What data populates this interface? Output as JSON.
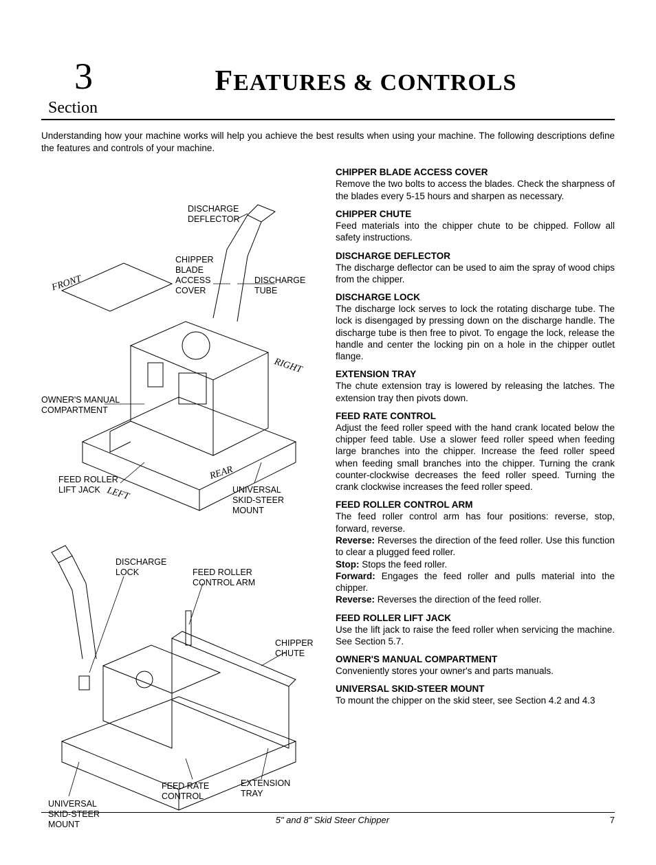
{
  "header": {
    "section_number": "3",
    "section_word": "Section",
    "title_pre": "F",
    "title_rest": "EATURES & CONTROLS"
  },
  "intro": "Understanding how your machine works will help you achieve the best results when using your machine.  The following descriptions define the features and controls of your machine.",
  "diagram1": {
    "labels": {
      "discharge_deflector": "DISCHARGE\nDEFLECTOR",
      "chipper_blade_access_cover": "CHIPPER\nBLADE\nACCESS\nCOVER",
      "discharge_tube": "DISCHARGE\nTUBE",
      "owners_manual_compartment": "OWNER'S MANUAL\nCOMPARTMENT",
      "feed_roller_lift_jack": "FEED ROLLER\nLIFT JACK",
      "universal_skid_steer_mount": "UNIVERSAL\nSKID-STEER\nMOUNT",
      "front": "FRONT",
      "right": "RIGHT",
      "rear": "REAR",
      "left": "LEFT"
    }
  },
  "diagram2": {
    "labels": {
      "discharge_lock": "DISCHARGE\nLOCK",
      "feed_roller_control_arm": "FEED ROLLER\nCONTROL ARM",
      "chipper_chute": "CHIPPER\nCHUTE",
      "feed_rate_control": "FEED RATE\nCONTROL",
      "extension_tray": "EXTENSION\nTRAY",
      "universal_skid_steer_mount": "UNIVERSAL\nSKID-STEER\nMOUNT"
    }
  },
  "features": [
    {
      "heading": "CHIPPER BLADE ACCESS COVER",
      "body": "Remove the two bolts to access the blades. Check the sharpness of the blades every 5-15 hours and sharpen as necessary."
    },
    {
      "heading": "CHIPPER CHUTE",
      "body": "Feed materials into the chipper chute to be chipped. Follow all safety instructions."
    },
    {
      "heading": "DISCHARGE DEFLECTOR",
      "body": "The discharge deflector can be used to aim the spray of wood chips from the chipper."
    },
    {
      "heading": "DISCHARGE LOCK",
      "body": "The discharge lock serves to lock the rotating discharge tube.  The lock is disengaged by pressing down on the discharge handle.  The discharge tube is then free to pivot.  To engage the lock, release the handle and center the locking pin on a hole in the chipper outlet flange."
    },
    {
      "heading": "EXTENSION TRAY",
      "body": "The chute extension tray is lowered by releasing the latches.  The extension tray then pivots down."
    },
    {
      "heading": "FEED RATE CONTROL",
      "body": "Adjust the feed roller speed with the hand crank located below the chipper feed table.  Use a slower feed roller speed when feeding large branches into the chipper.  Increase the feed roller speed when feeding small branches into the chipper.  Turning the crank counter-clockwise decreases the feed roller speed.  Turning the crank clockwise increases the feed roller speed."
    },
    {
      "heading": "FEED ROLLER CONTROL ARM",
      "body": "The feed roller control arm has four positions: reverse, stop, forward, reverse."
    },
    {
      "heading": "",
      "body": "<b>Reverse:</b> Reverses the direction of the feed roller. Use this function to clear a plugged feed roller."
    },
    {
      "heading": "",
      "body": "<b>Stop:</b> Stops the feed roller."
    },
    {
      "heading": "",
      "body": "<b>Forward:</b> Engages the feed roller and pulls material into the chipper."
    },
    {
      "heading": "",
      "body": "<b>Reverse:</b> Reverses the direction of the feed roller."
    },
    {
      "heading": "FEED ROLLER LIFT JACK",
      "body": "Use the lift jack to raise the feed roller when servicing the machine. See Section 5.7."
    },
    {
      "heading": "OWNER'S MANUAL COMPARTMENT",
      "body": "Conveniently stores your owner's and parts manuals."
    },
    {
      "heading": "UNIVERSAL SKID-STEER MOUNT",
      "body": "To mount the chipper on the skid steer, see Section 4.2 and 4.3"
    }
  ],
  "footer": {
    "title": "5\" and 8\" Skid Steer Chipper",
    "page": "7"
  }
}
